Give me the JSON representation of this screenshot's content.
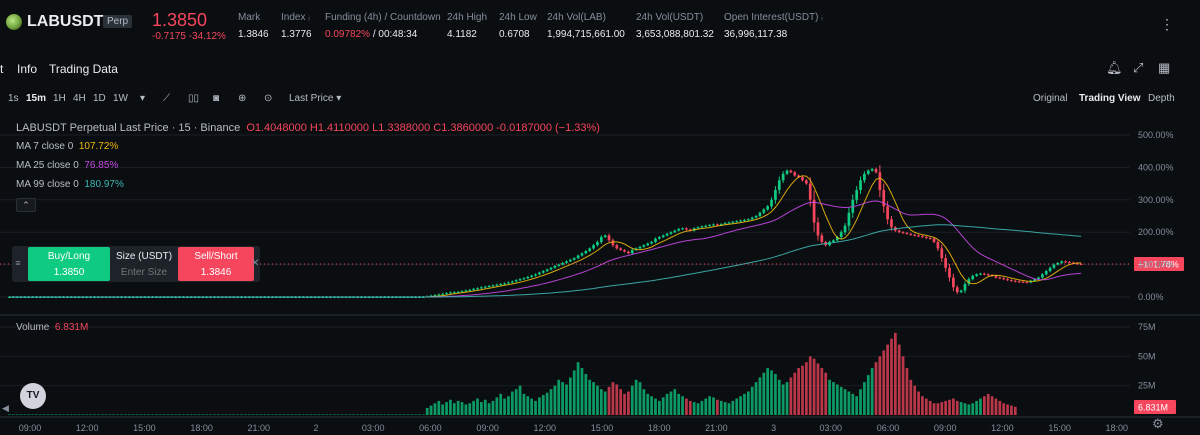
{
  "header": {
    "symbol": "LABUSDT",
    "badge": "Perp",
    "last_price": "1.3850",
    "change": "-0.7175 -34.12%",
    "mark_label": "Mark",
    "mark_value": "1.3846",
    "index_label": "Index",
    "index_value": "1.3776",
    "funding_label": "Funding (4h) / Countdown",
    "funding_rate": "0.09782%",
    "countdown": " / 00:48:34",
    "high_label": "24h High",
    "high_value": "4.1182",
    "low_label": "24h Low",
    "low_value": "0.6708",
    "vol_lab_label": "24h Vol(LAB)",
    "vol_lab_value": "1,994,715,661.00",
    "vol_usdt_label": "24h Vol(USDT)",
    "vol_usdt_value": "3,653,088,801.32",
    "oi_label": "Open Interest(USDT)",
    "oi_value": "36,996,117.38",
    "more": "⋮"
  },
  "tabs": {
    "chart": "t",
    "info": "Info",
    "trading_data": "Trading Data"
  },
  "toolbar": {
    "intervals": [
      "1s",
      "15m",
      "1H",
      "4H",
      "1D",
      "1W"
    ],
    "active_interval": "15m",
    "price_type": "Last Price",
    "views": [
      "Original",
      "Trading View",
      "Depth"
    ],
    "active_view": "Trading View"
  },
  "legend": {
    "title": "LABUSDT Perpetual Last Price · 15 · Binance",
    "ohlc": "O1.4048000  H1.4110000  L1.3388000  C1.3860000  -0.0187000 (−1.33%)",
    "ma7_label": "MA 7 close 0",
    "ma7_value": "107.72%",
    "ma25_label": "MA 25 close 0",
    "ma25_value": "76.85%",
    "ma99_label": "MA 99 close 0",
    "ma99_value": "180.97%",
    "volume_label": "Volume",
    "volume_value": "6.831M"
  },
  "order_panel": {
    "buy_label": "Buy/Long",
    "buy_price": "1.3850",
    "size_label": "Size (USDT)",
    "size_placeholder": "Enter Size",
    "sell_label": "Sell/Short",
    "sell_price": "1.3846"
  },
  "colors": {
    "up": "#0ecb81",
    "down": "#f6465d",
    "ma7": "#f0b90b",
    "ma25": "#c848e8",
    "ma99": "#3fb6b2",
    "background": "#0b0e11",
    "grid": "#1b1f25"
  },
  "chart_data": {
    "type": "candlestick",
    "price_axis_ticks": [
      "500.00%",
      "400.00%",
      "300.00%",
      "200.00%",
      "100.00%",
      "0.00%"
    ],
    "price_axis_values": [
      500,
      400,
      300,
      200,
      100,
      0
    ],
    "current_label": "+101.78%",
    "current_value": 101.78,
    "volume_axis_ticks": [
      "75M",
      "50M",
      "25M"
    ],
    "volume_axis_values": [
      75,
      50,
      25
    ],
    "volume_current_label": "6.831M",
    "volume_current_value": 6.831,
    "time_ticks": [
      "09:00",
      "12:00",
      "15:00",
      "18:00",
      "21:00",
      "2",
      "03:00",
      "06:00",
      "09:00",
      "12:00",
      "15:00",
      "18:00",
      "21:00",
      "3",
      "03:00",
      "06:00",
      "09:00",
      "12:00",
      "15:00",
      "18:00"
    ],
    "price_path": [
      0,
      0,
      0,
      0,
      0,
      0,
      0,
      0,
      0,
      0,
      0,
      0,
      0,
      0,
      0,
      0,
      0,
      0,
      0,
      0,
      0,
      0,
      0,
      0,
      0,
      0,
      0,
      0,
      0,
      0,
      0,
      0,
      0,
      0,
      0,
      0,
      0,
      0,
      0,
      0,
      0,
      0,
      0,
      0,
      0,
      0,
      0,
      0,
      0,
      0,
      0,
      0,
      0,
      0,
      0,
      0,
      0,
      0,
      0,
      0,
      0,
      0,
      0,
      0,
      0,
      0,
      0,
      0,
      0,
      0,
      0,
      0,
      0,
      0,
      0,
      0,
      0,
      0,
      0,
      0,
      0,
      0,
      0,
      0,
      0,
      0,
      0,
      0,
      0,
      0,
      0,
      0,
      0,
      0,
      0,
      0,
      0,
      0,
      0,
      0,
      0,
      0,
      0,
      0,
      0,
      0,
      0,
      0,
      2,
      4,
      6,
      8,
      10,
      12,
      14,
      15,
      16,
      18,
      20,
      22,
      25,
      27,
      30,
      32,
      34,
      36,
      38,
      40,
      42,
      45,
      48,
      52,
      55,
      58,
      62,
      66,
      70,
      75,
      80,
      85,
      90,
      96,
      100,
      105,
      110,
      115,
      120,
      128,
      135,
      142,
      150,
      160,
      170,
      185,
      190,
      175,
      160,
      150,
      145,
      140,
      135,
      145,
      150,
      155,
      160,
      165,
      170,
      180,
      185,
      190,
      195,
      200,
      205,
      210,
      212,
      208,
      205,
      212,
      215,
      218,
      220,
      222,
      224,
      222,
      225,
      228,
      230,
      232,
      234,
      236,
      238,
      240,
      245,
      250,
      260,
      270,
      280,
      300,
      330,
      360,
      380,
      390,
      385,
      375,
      370,
      360,
      350,
      300,
      230,
      190,
      170,
      160,
      170,
      175,
      185,
      200,
      220,
      260,
      300,
      330,
      360,
      380,
      390,
      395,
      385,
      330,
      280,
      240,
      215,
      205,
      200,
      198,
      195,
      192,
      190,
      188,
      185,
      182,
      180,
      170,
      150,
      120,
      90,
      60,
      30,
      15,
      20,
      40,
      55,
      65,
      70,
      72,
      70,
      68,
      65,
      60,
      58,
      55,
      52,
      50,
      48,
      47,
      46,
      45,
      50,
      55,
      60,
      70,
      80,
      90,
      100,
      105,
      110,
      108,
      106,
      104,
      102,
      101.78
    ],
    "volume_path": [
      0.5,
      0.5,
      0.5,
      0.5,
      0.5,
      0.5,
      0.5,
      0.5,
      0.5,
      0.5,
      0.5,
      0.5,
      0.5,
      0.5,
      0.5,
      0.5,
      0.5,
      0.5,
      0.5,
      0.5,
      0.5,
      0.5,
      0.5,
      0.5,
      0.5,
      0.5,
      0.5,
      0.5,
      0.5,
      0.5,
      0.5,
      0.5,
      0.5,
      0.5,
      0.5,
      0.5,
      0.5,
      0.5,
      0.5,
      0.5,
      0.5,
      0.5,
      0.5,
      0.5,
      0.5,
      0.5,
      0.5,
      0.5,
      0.5,
      0.5,
      0.5,
      0.5,
      0.5,
      0.5,
      0.5,
      0.5,
      0.5,
      0.5,
      0.5,
      0.5,
      0.5,
      0.5,
      0.5,
      0.5,
      0.5,
      0.5,
      0.5,
      0.5,
      0.5,
      0.5,
      0.5,
      0.5,
      0.5,
      0.5,
      0.5,
      0.5,
      0.5,
      0.5,
      0.5,
      0.5,
      0.5,
      0.5,
      0.5,
      0.5,
      0.5,
      0.5,
      0.5,
      0.5,
      0.5,
      0.5,
      0.5,
      0.5,
      0.5,
      0.5,
      0.5,
      0.5,
      0.5,
      0.5,
      0.5,
      0.5,
      0.5,
      0.5,
      0.5,
      0.5,
      0.5,
      0.5,
      0.5,
      0.5,
      6,
      8,
      10,
      12,
      9,
      11,
      13,
      10,
      12,
      11,
      9,
      10,
      12,
      14,
      11,
      13,
      10,
      12,
      15,
      18,
      14,
      16,
      20,
      22,
      25,
      18,
      16,
      14,
      12,
      15,
      17,
      19,
      22,
      25,
      30,
      28,
      26,
      32,
      38,
      45,
      40,
      35,
      30,
      28,
      25,
      22,
      20,
      24,
      28,
      26,
      22,
      18,
      20,
      25,
      30,
      28,
      22,
      18,
      16,
      14,
      12,
      15,
      18,
      20,
      22,
      18,
      16,
      14,
      12,
      11,
      10,
      12,
      14,
      16,
      15,
      13,
      12,
      11,
      10,
      12,
      14,
      16,
      18,
      20,
      24,
      28,
      32,
      36,
      40,
      38,
      35,
      30,
      26,
      28,
      32,
      36,
      40,
      42,
      45,
      50,
      48,
      44,
      40,
      36,
      30,
      28,
      26,
      24,
      22,
      20,
      18,
      16,
      22,
      28,
      34,
      40,
      45,
      50,
      55,
      60,
      65,
      70,
      60,
      50,
      40,
      30,
      25,
      20,
      16,
      14,
      12,
      10,
      10,
      11,
      12,
      13,
      14,
      12,
      11,
      10,
      9,
      10,
      12,
      14,
      16,
      18,
      16,
      14,
      12,
      10,
      9,
      8,
      7
    ]
  }
}
